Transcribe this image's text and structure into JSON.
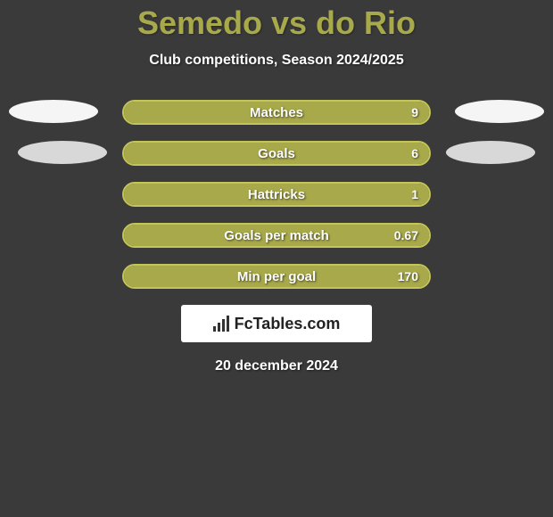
{
  "title": "Semedo vs do Rio",
  "subtitle": "Club competitions, Season 2024/2025",
  "colors": {
    "background": "#3a3a3a",
    "accent_fill": "#a8a94a",
    "accent_border": "#c4c558",
    "ellipse_light": "#f5f5f5",
    "ellipse_dark": "#d8d8d8",
    "text_white": "#ffffff"
  },
  "stats": [
    {
      "label": "Matches",
      "value": "9",
      "fill_percent": 100
    },
    {
      "label": "Goals",
      "value": "6",
      "fill_percent": 100
    },
    {
      "label": "Hattricks",
      "value": "1",
      "fill_percent": 100
    },
    {
      "label": "Goals per match",
      "value": "0.67",
      "fill_percent": 100
    },
    {
      "label": "Min per goal",
      "value": "170",
      "fill_percent": 100
    }
  ],
  "brand": {
    "name": "FcTables.com"
  },
  "date": "20 december 2024"
}
